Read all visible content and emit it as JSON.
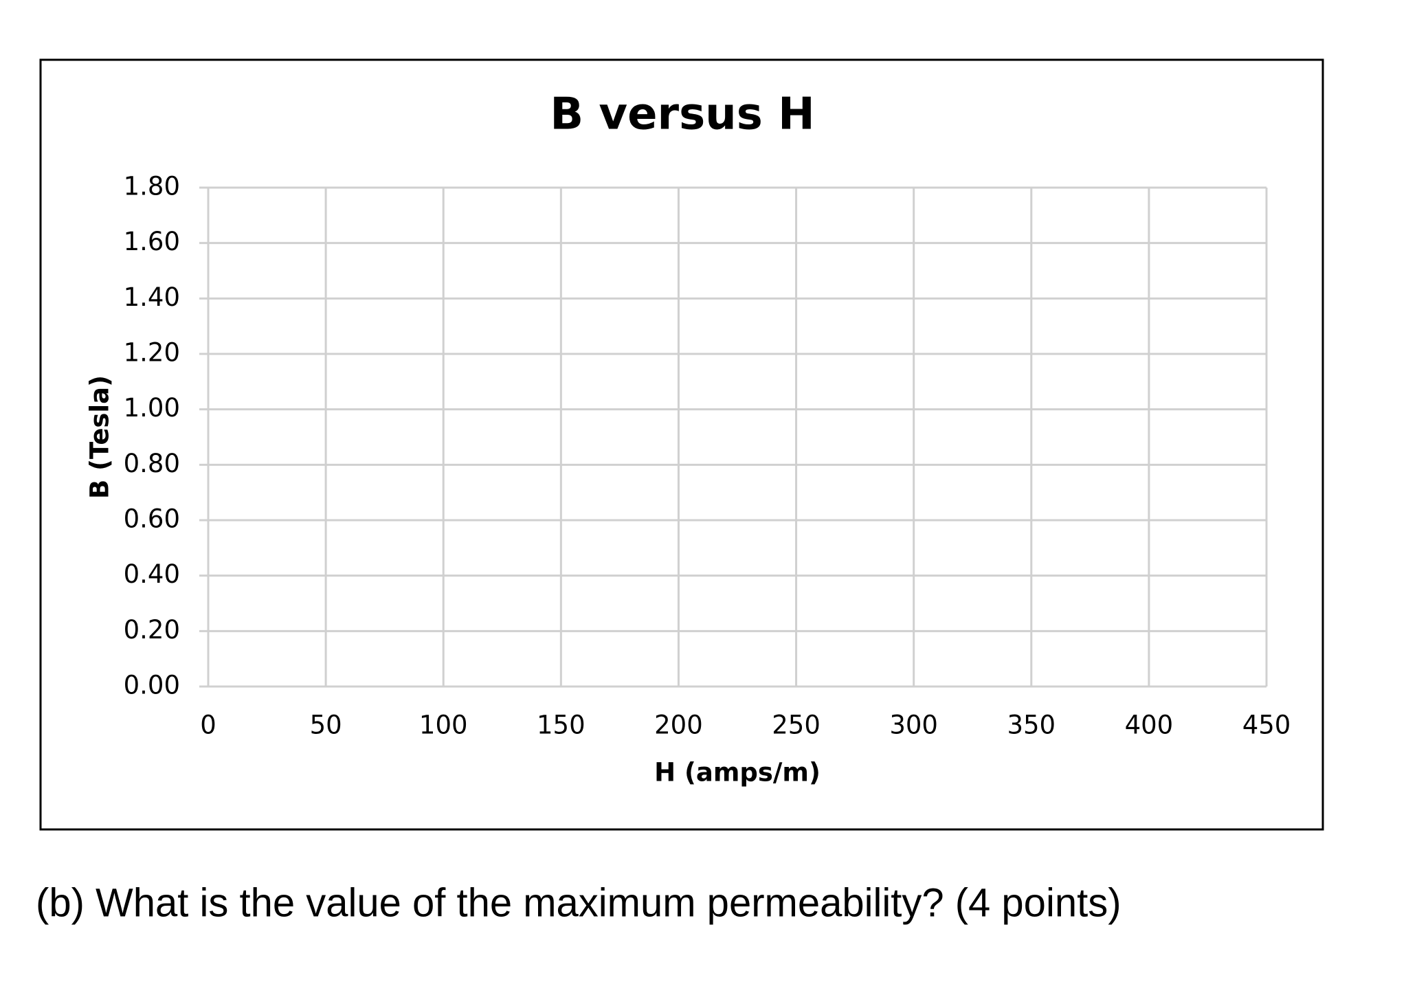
{
  "chart_data": {
    "type": "scatter",
    "title": "B versus H",
    "x_label": "H (amps/m)",
    "y_label": "B (Tesla)",
    "xlim": [
      0,
      450
    ],
    "xticks": [
      0,
      50,
      100,
      150,
      200,
      250,
      300,
      350,
      400,
      450
    ],
    "ylim": [
      0,
      1.8
    ],
    "yticks": [
      {
        "value": 0,
        "label": "0.00"
      },
      {
        "value": 0.2,
        "label": "0.20"
      },
      {
        "value": 0.4,
        "label": "0.40"
      },
      {
        "value": 0.6,
        "label": "0.60"
      },
      {
        "value": 0.8,
        "label": "0.80"
      },
      {
        "value": 1,
        "label": "1.00"
      },
      {
        "value": 1.2,
        "label": "1.20"
      },
      {
        "value": 1.4,
        "label": "1.40"
      },
      {
        "value": 1.6,
        "label": "1.60"
      },
      {
        "value": 1.8,
        "label": "1.80"
      }
    ],
    "grid": true,
    "series": []
  },
  "question": "(b) What is the value of the maximum permeability? (4 points)"
}
